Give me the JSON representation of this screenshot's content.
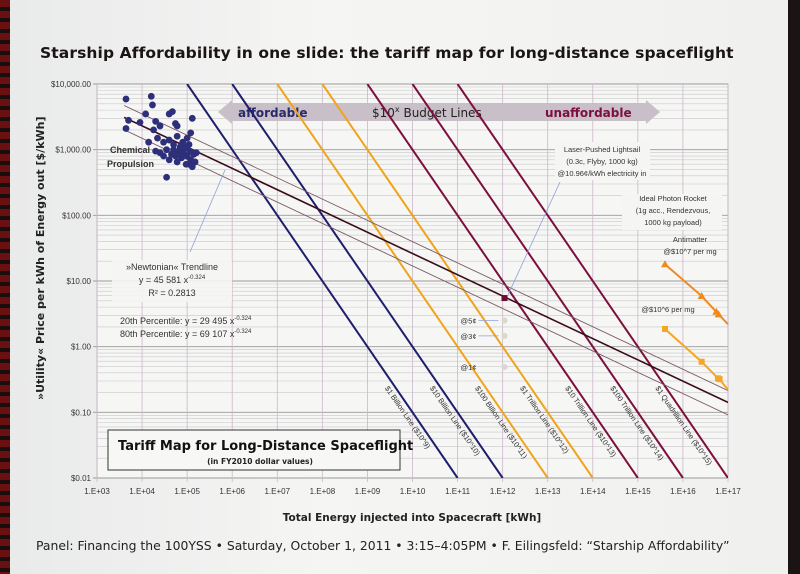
{
  "slide": {
    "title": "Starship Affordability in one slide: the tariff map for long-distance spaceflight",
    "footer": "Panel: Financing the 100YSS  •  Saturday, October 1, 2011  •  3:15–4:05PM  •  F. Eilingsfeld: “Starship Affordability”"
  },
  "colors": {
    "navy": "#1e1e6c",
    "orange": "#f0a41c",
    "maroon": "#7c0f3e",
    "trend": "#3a0d1c",
    "pct": "#7a5a66",
    "scatter": "#2e2f7a",
    "arrow": "#c9bfc9",
    "antimatter": "#f08a20",
    "antimatter2": "#f5a623"
  },
  "chart_data": {
    "type": "scatter",
    "xlabel": "Total Energy injected into Spacecraft [kWh]",
    "ylabel": "»Utility« Price per kWh of Energy out [$/kWh]",
    "xscale": "log",
    "yscale": "log",
    "xlim": [
      1000.0,
      1e+17
    ],
    "ylim": [
      0.01,
      10000
    ],
    "xticks": [
      "1.E+03",
      "1.E+04",
      "1.E+05",
      "1.E+06",
      "1.E+07",
      "1.E+08",
      "1.E+09",
      "1.E+10",
      "1.E+11",
      "1.E+12",
      "1.E+13",
      "1.E+14",
      "1.E+15",
      "1.E+16",
      "1.E+17"
    ],
    "yticks": [
      "$0.01",
      "$0.10",
      "$1.00",
      "$10.00",
      "$100.00",
      "$1,000.00",
      "$10,000.00"
    ],
    "grid": true,
    "inner_title": "Tariff Map for Long-Distance Spaceflight",
    "inner_subtitle": "(in FY2010 dollar values)",
    "band": {
      "left": "affordable",
      "center_prefix": "$10",
      "center_sup": "x",
      "center_suffix": " Budget Lines",
      "right": "unaffordable"
    },
    "chemical": {
      "label_line1": "Chemical",
      "label_line2": "Propulsion",
      "points": [
        [
          4400,
          5900
        ],
        [
          16000,
          6500
        ],
        [
          17000,
          4800
        ],
        [
          12000,
          3500
        ],
        [
          5000,
          2800
        ],
        [
          9000,
          2600
        ],
        [
          4400,
          2100
        ],
        [
          20000,
          2700
        ],
        [
          25000,
          2300
        ],
        [
          18000,
          2000
        ],
        [
          40000,
          3500
        ],
        [
          47000,
          3800
        ],
        [
          55000,
          2500
        ],
        [
          60000,
          2300
        ],
        [
          130000,
          3000
        ],
        [
          120000,
          1800
        ],
        [
          14000,
          1300
        ],
        [
          22000,
          1500
        ],
        [
          30000,
          1300
        ],
        [
          40000,
          1400
        ],
        [
          50000,
          1200
        ],
        [
          60000,
          1600
        ],
        [
          80000,
          1300
        ],
        [
          100000,
          1500
        ],
        [
          110000,
          1200
        ],
        [
          90000,
          1100
        ],
        [
          70000,
          1000
        ],
        [
          35000,
          1000
        ],
        [
          25000,
          900
        ],
        [
          20000,
          950
        ],
        [
          45000,
          850
        ],
        [
          55000,
          800
        ],
        [
          65000,
          900
        ],
        [
          75000,
          750
        ],
        [
          85000,
          850
        ],
        [
          100000,
          800
        ],
        [
          120000,
          700
        ],
        [
          140000,
          850
        ],
        [
          150000,
          650
        ],
        [
          95000,
          600
        ],
        [
          110000,
          600
        ],
        [
          130000,
          550
        ],
        [
          60000,
          650
        ],
        [
          40000,
          700
        ],
        [
          30000,
          800
        ],
        [
          50000,
          1000
        ],
        [
          80000,
          950
        ],
        [
          160000,
          900
        ],
        [
          35000,
          380
        ],
        [
          70000,
          1100
        ],
        [
          100000,
          1050
        ],
        [
          115000,
          950
        ]
      ]
    },
    "trendline": {
      "name": "»Newtonian« Trendline",
      "equation": "y = 45 581 x",
      "exponent": "-0.324",
      "r2": "R² = 0.2813",
      "a": 45581,
      "b": -0.324
    },
    "percentiles": [
      {
        "name": "20th Percentile",
        "label": "20th Percentile: y = 29 495 x",
        "exponent": "-0.324",
        "a": 29495,
        "b": -0.324
      },
      {
        "name": "80th Percentile",
        "label": "80th Percentile: y = 69 107 x",
        "exponent": "-0.324",
        "a": 69107,
        "b": -0.324
      }
    ],
    "budget_lines": [
      {
        "label": "$1 Billion Line ($10^9)",
        "budget": 1000000000.0,
        "color": "navy"
      },
      {
        "label": "$10 Billion Line ($10^10)",
        "budget": 10000000000.0,
        "color": "navy"
      },
      {
        "label": "$100 Billion Line ($10^11)",
        "budget": 100000000000.0,
        "color": "orange"
      },
      {
        "label": "$1 Trillion Line ($10^12)",
        "budget": 1000000000000.0,
        "color": "orange"
      },
      {
        "label": "$10 Trillion Line ($10^13)",
        "budget": 10000000000000.0,
        "color": "maroon"
      },
      {
        "label": "$100 Trillion Line ($10^14)",
        "budget": 100000000000000.0,
        "color": "maroon"
      },
      {
        "label": "$1 Quadrillion Line ($10^15)",
        "budget": 1000000000000000.0,
        "color": "maroon"
      }
    ],
    "lightsail": {
      "label_line1": "Laser-Pushed Lightsail",
      "label_line2": "(0.3c, Flyby, 1000 kg)",
      "label_line3": "@10.96¢/kWh electricity in",
      "point": [
        1100000000000.0,
        5.5
      ],
      "alt_points": [
        {
          "label": "@5¢",
          "x": 1100000000000.0,
          "y": 2.5
        },
        {
          "label": "@3¢",
          "x": 1100000000000.0,
          "y": 1.46
        },
        {
          "label": "@1¢",
          "x": 1100000000000.0,
          "y": 0.49
        }
      ]
    },
    "photon_rocket": {
      "label_line1": "Ideal Photon Rocket",
      "label_line2": "(1g acc., Rendezvous,",
      "label_line3": "1000 kg payload)"
    },
    "antimatter_series": [
      {
        "label_line1": "Antimatter",
        "label_line2": "@$10^7 per mg",
        "marker": "triangle",
        "color": "antimatter",
        "points": [
          [
            4000000000000000.0,
            18
          ],
          [
            2.6e+16,
            5.9
          ],
          [
            5.5e+16,
            3.4
          ],
          [
            6.2e+16,
            3.1
          ],
          [
            1e+17,
            2.2
          ]
        ]
      },
      {
        "label_line1": "",
        "label_line2": "@$10^6 per mg",
        "marker": "square",
        "color": "antimatter2",
        "points": [
          [
            4000000000000000.0,
            1.86
          ],
          [
            2.6e+16,
            0.59
          ],
          [
            6e+16,
            0.33
          ],
          [
            6.5e+16,
            0.32
          ],
          [
            1e+17,
            0.22
          ]
        ]
      }
    ]
  }
}
